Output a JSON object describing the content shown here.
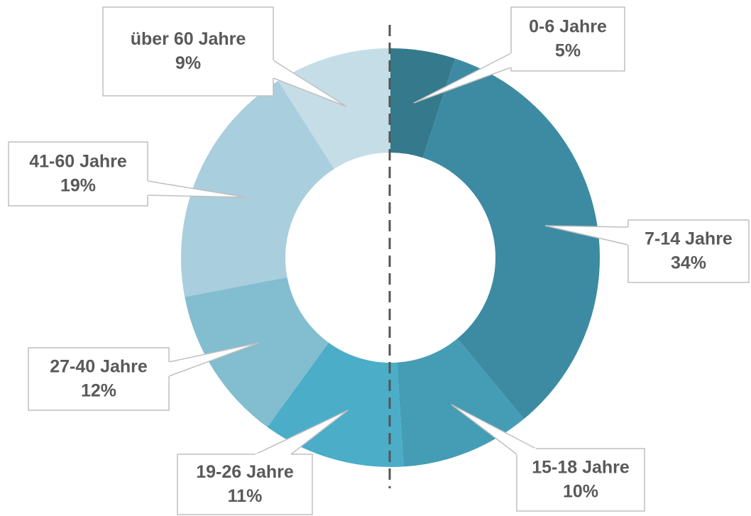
{
  "chart_data": {
    "type": "donut",
    "categories": [
      "0-6 Jahre",
      "7-14 Jahre",
      "15-18 Jahre",
      "19-26 Jahre",
      "27-40 Jahre",
      "41-60 Jahre",
      "über 60 Jahre"
    ],
    "values": [
      5,
      34,
      10,
      11,
      12,
      19,
      9
    ],
    "value_labels": [
      "5%",
      "34%",
      "10%",
      "11%",
      "12%",
      "19%",
      "9%"
    ],
    "colors": [
      "#347a8c",
      "#3d8ba3",
      "#459db5",
      "#4badc8",
      "#83bdd0",
      "#a9cedd",
      "#c5dde7"
    ]
  }
}
